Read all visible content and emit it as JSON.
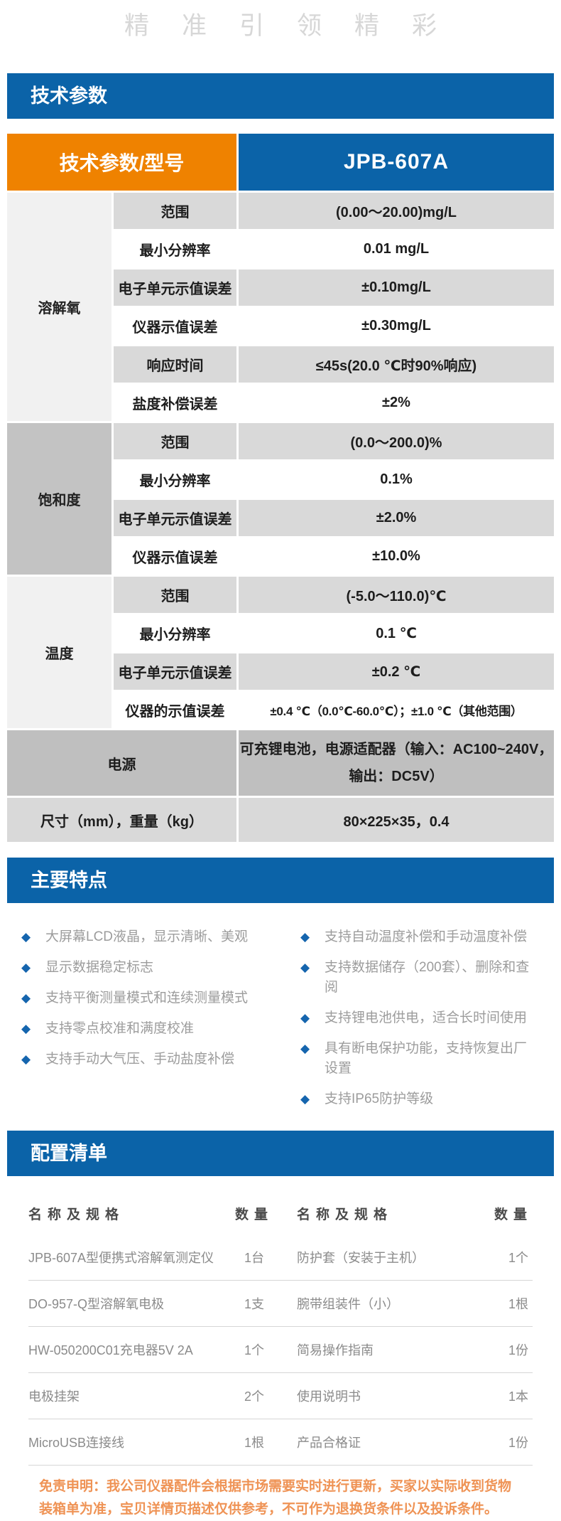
{
  "colors": {
    "primary_blue": "#0b63a8",
    "accent_orange": "#ef8200",
    "row_gray": "#d9d9d9",
    "category_dark_gray": "#c3c3c3",
    "power_row_gray": "#bfbfbf",
    "feature_text_gray": "#9c9c9c",
    "disclaimer_orange": "#ef9355"
  },
  "watermark": "精准引领精彩",
  "spec": {
    "section_title": "技术参数",
    "header": {
      "param_model": "技术参数/型号",
      "model": "JPB-607A"
    },
    "groups": [
      {
        "name": "溶解氧",
        "rows": [
          [
            "范围",
            "(0.00～20.00)mg/L"
          ],
          [
            "最小分辨率",
            "0.01 mg/L"
          ],
          [
            "电子单元示值误差",
            "±0.10mg/L"
          ],
          [
            "仪器示值误差",
            "±0.30mg/L"
          ],
          [
            "响应时间",
            "≤45s(20.0 ℃时90%响应)"
          ],
          [
            "盐度补偿误差",
            "±2%"
          ]
        ]
      },
      {
        "name": "饱和度",
        "rows": [
          [
            "范围",
            "(0.0～200.0)%"
          ],
          [
            "最小分辨率",
            "0.1%"
          ],
          [
            "电子单元示值误差",
            "±2.0%"
          ],
          [
            "仪器示值误差",
            "±10.0%"
          ]
        ]
      },
      {
        "name": "温度",
        "rows": [
          [
            "范围",
            "(-5.0～110.0)℃"
          ],
          [
            "最小分辨率",
            "0.1 ℃"
          ],
          [
            "电子单元示值误差",
            "±0.2 ℃"
          ],
          [
            "仪器的示值误差",
            "±0.4 ℃（0.0℃-60.0℃）；±1.0 ℃（其他范围）"
          ]
        ]
      }
    ],
    "power_row": {
      "label": "电源",
      "value": "可充锂电池，电源适配器（输入：AC100~240V，\n输出：DC5V）"
    },
    "size_row": {
      "label": "尺寸（mm），重量（kg）",
      "value": "80×225×35，0.4"
    }
  },
  "features": {
    "section_title": "主要特点",
    "bullet": "◆",
    "left": [
      "大屏幕LCD液晶，显示清晰、美观",
      "显示数据稳定标志",
      "支持平衡测量模式和连续测量模式",
      "支持零点校准和满度校准",
      "支持手动大气压、手动盐度补偿"
    ],
    "right": [
      "支持自动温度补偿和手动温度补偿",
      "支持数据储存（200套）、删除和查阅",
      "支持锂电池供电，适合长时间使用",
      "具有断电保护功能，支持恢复出厂设置",
      "支持IP65防护等级"
    ]
  },
  "config_list": {
    "section_title": "配置清单",
    "headers": [
      "名称及规格",
      "数量",
      "名称及规格",
      "数量"
    ],
    "rows": [
      [
        "JPB-607A型便携式溶解氧测定仪",
        "1台",
        "防护套（安装于主机）",
        "1个"
      ],
      [
        "DO-957-Q型溶解氧电极",
        "1支",
        "腕带组装件（小）",
        "1根"
      ],
      [
        "HW-050200C01充电器5V 2A",
        "1个",
        "简易操作指南",
        "1份"
      ],
      [
        "电极挂架",
        "2个",
        "使用说明书",
        "1本"
      ],
      [
        "MicroUSB连接线",
        "1根",
        "产品合格证",
        "1份"
      ]
    ],
    "disclaimer": "免责申明：我公司仪器配件会根据市场需要实时进行更新，买家以实际收到货物装箱单为准，宝贝详情页描述仅供参考，不可作为退换货条件以及投诉条件。"
  }
}
